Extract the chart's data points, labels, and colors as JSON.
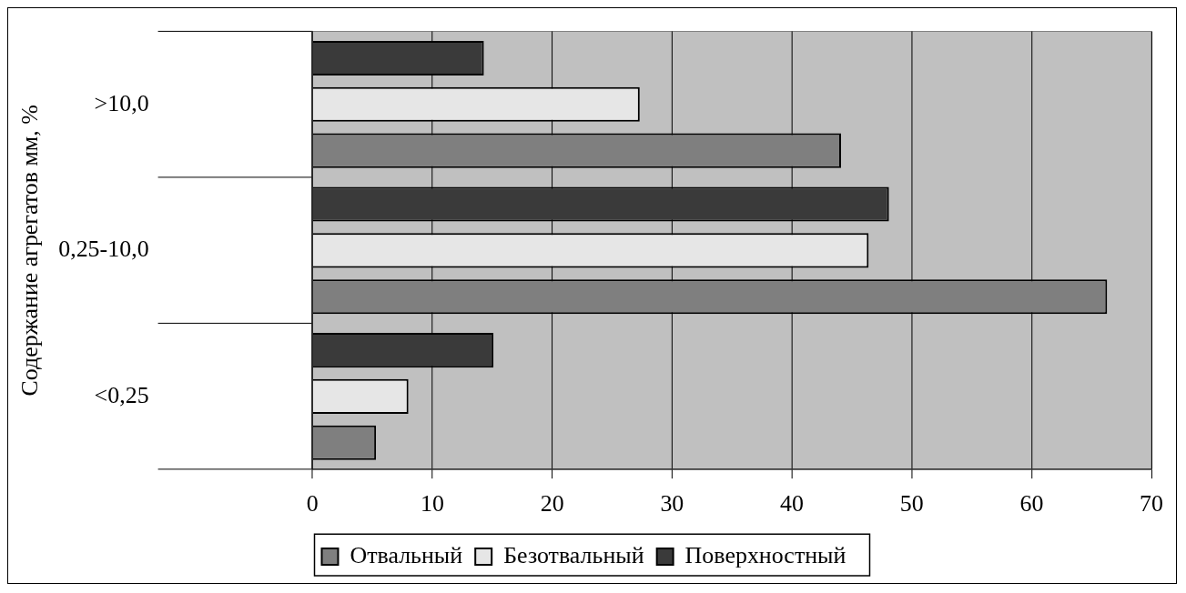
{
  "chart_data": {
    "type": "bar",
    "orientation": "horizontal",
    "ylabel": "Содержание агрегатов мм, %",
    "categories": [
      ">10,0",
      "0,25-10,0",
      "<0,25"
    ],
    "series": [
      {
        "name": "Отвальный",
        "color": "#7f7f7f",
        "values": [
          44.1,
          66.3,
          5.3
        ]
      },
      {
        "name": "Безотвальный",
        "color": "#e6e6e6",
        "values": [
          27.3,
          46.4,
          8.0
        ]
      },
      {
        "name": "Поверхностный",
        "color": "#3a3a3a",
        "values": [
          14.3,
          48.1,
          15.1
        ]
      }
    ],
    "xlim": [
      0,
      70
    ],
    "xticks": [
      0,
      10,
      20,
      30,
      40,
      50,
      60,
      70
    ],
    "grid": "x",
    "legend": "bottom"
  }
}
